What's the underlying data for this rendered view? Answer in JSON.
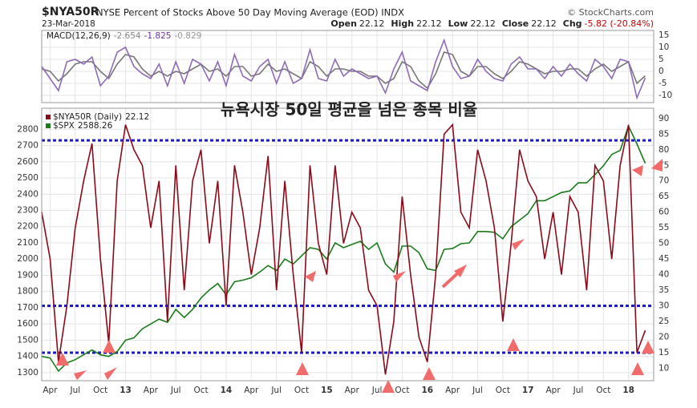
{
  "header": {
    "symbol": "$NYA50R",
    "description": "NYSE Percent of Stocks Above 50 Day Moving Average (EOD) INDX",
    "source": "© StockCharts.com",
    "date": "23-Mar-2018",
    "quote": [
      {
        "label": "Open",
        "value": "22.12"
      },
      {
        "label": "High",
        "value": "22.12"
      },
      {
        "label": "Low",
        "value": "22.12"
      },
      {
        "label": "Close",
        "value": "22.12"
      },
      {
        "label": "Chg",
        "value": "-5.82 (-20.84%)"
      }
    ]
  },
  "chart_data": [
    {
      "type": "line",
      "legend_label": "MACD(12,26,9)",
      "legend_values": [
        "-2.654",
        "-1.825",
        "-0.829"
      ],
      "x": [
        "2012-03",
        "2012-04",
        "2012-05",
        "2012-06",
        "2012-07",
        "2012-08",
        "2012-09",
        "2012-10",
        "2012-11",
        "2012-12",
        "2013-01",
        "2013-02",
        "2013-03",
        "2013-04",
        "2013-05",
        "2013-06",
        "2013-07",
        "2013-08",
        "2013-09",
        "2013-10",
        "2013-11",
        "2013-12",
        "2014-01",
        "2014-02",
        "2014-03",
        "2014-04",
        "2014-05",
        "2014-06",
        "2014-07",
        "2014-08",
        "2014-09",
        "2014-10",
        "2014-11",
        "2014-12",
        "2015-01",
        "2015-02",
        "2015-03",
        "2015-04",
        "2015-05",
        "2015-06",
        "2015-07",
        "2015-08",
        "2015-09",
        "2015-10",
        "2015-11",
        "2015-12",
        "2016-01",
        "2016-02",
        "2016-03",
        "2016-04",
        "2016-05",
        "2016-06",
        "2016-07",
        "2016-08",
        "2016-09",
        "2016-10",
        "2016-11",
        "2016-12",
        "2017-01",
        "2017-02",
        "2017-03",
        "2017-04",
        "2017-05",
        "2017-06",
        "2017-07",
        "2017-08",
        "2017-09",
        "2017-10",
        "2017-11",
        "2017-12",
        "2018-01",
        "2018-02",
        "2018-03"
      ],
      "xlim": [
        "2012-03",
        "2018-04"
      ],
      "ylim": [
        -13,
        17
      ],
      "yticks": [
        15,
        10,
        5,
        0,
        -5,
        -10
      ],
      "ytick_side": "right",
      "grid": true,
      "series": [
        {
          "color": "#8e6bb5",
          "values": [
            2,
            -3,
            -8,
            4,
            5,
            3,
            6,
            -6,
            -2,
            8,
            10,
            2,
            -1,
            -3,
            3,
            -6,
            4,
            -5,
            5,
            3,
            -4,
            4,
            -6,
            7,
            -2,
            -4,
            2,
            5,
            -5,
            4,
            -5,
            -3,
            9,
            -3,
            -4,
            5,
            -2,
            1,
            -1,
            -3,
            -2,
            -9,
            1,
            8,
            -4,
            -6,
            -8,
            4,
            13,
            2,
            -3,
            -2,
            5,
            0,
            -3,
            -4,
            3,
            6,
            1,
            1,
            -3,
            2,
            -2,
            3,
            -1,
            -4,
            5,
            2,
            -3,
            5,
            4,
            -11,
            -2.654
          ]
        },
        {
          "color": "#777777",
          "values": [
            1,
            0,
            -4,
            -1,
            3,
            4,
            4,
            0,
            -3,
            3,
            7,
            6,
            1,
            -2,
            0,
            -2,
            0,
            -1,
            1,
            3,
            0,
            1,
            -2,
            2,
            2,
            -2,
            -1,
            3,
            0,
            1,
            -1,
            -3,
            4,
            2,
            -2,
            1,
            1,
            0,
            0,
            -2,
            -2,
            -5,
            -3,
            4,
            2,
            -4,
            -7,
            -1,
            8,
            7,
            0,
            -2,
            2,
            2,
            -1,
            -3,
            0,
            4,
            3,
            1,
            -1,
            0,
            0,
            1,
            1,
            -2,
            1,
            3,
            0,
            2,
            4,
            -5,
            -1.825
          ]
        }
      ]
    },
    {
      "type": "line",
      "annotation": "뉴욕시장 50일 평균을 넘은 종목 비율",
      "x": [
        "2012-03",
        "2012-04",
        "2012-05",
        "2012-06",
        "2012-07",
        "2012-08",
        "2012-09",
        "2012-10",
        "2012-11",
        "2012-12",
        "2013-01",
        "2013-02",
        "2013-03",
        "2013-04",
        "2013-05",
        "2013-06",
        "2013-07",
        "2013-08",
        "2013-09",
        "2013-10",
        "2013-11",
        "2013-12",
        "2014-01",
        "2014-02",
        "2014-03",
        "2014-04",
        "2014-05",
        "2014-06",
        "2014-07",
        "2014-08",
        "2014-09",
        "2014-10",
        "2014-11",
        "2014-12",
        "2015-01",
        "2015-02",
        "2015-03",
        "2015-04",
        "2015-05",
        "2015-06",
        "2015-07",
        "2015-08",
        "2015-09",
        "2015-10",
        "2015-11",
        "2015-12",
        "2016-01",
        "2016-02",
        "2016-03",
        "2016-04",
        "2016-05",
        "2016-06",
        "2016-07",
        "2016-08",
        "2016-09",
        "2016-10",
        "2016-11",
        "2016-12",
        "2017-01",
        "2017-02",
        "2017-03",
        "2017-04",
        "2017-05",
        "2017-06",
        "2017-07",
        "2017-08",
        "2017-09",
        "2017-10",
        "2017-11",
        "2017-12",
        "2018-01",
        "2018-02",
        "2018-03"
      ],
      "xlim": [
        "2012-03",
        "2018-04"
      ],
      "xticks": [
        {
          "value": "2012-04",
          "label": "Apr"
        },
        {
          "value": "2012-07",
          "label": "Jul"
        },
        {
          "value": "2012-10",
          "label": "Oct"
        },
        {
          "value": "2013-01",
          "label": "13"
        },
        {
          "value": "2013-04",
          "label": "Apr"
        },
        {
          "value": "2013-07",
          "label": "Jul"
        },
        {
          "value": "2013-10",
          "label": "Oct"
        },
        {
          "value": "2014-01",
          "label": "14"
        },
        {
          "value": "2014-04",
          "label": "Apr"
        },
        {
          "value": "2014-07",
          "label": "Jul"
        },
        {
          "value": "2014-10",
          "label": "Oct"
        },
        {
          "value": "2015-01",
          "label": "15"
        },
        {
          "value": "2015-04",
          "label": "Apr"
        },
        {
          "value": "2015-07",
          "label": "Jul"
        },
        {
          "value": "2015-10",
          "label": "Oct"
        },
        {
          "value": "2016-01",
          "label": "16"
        },
        {
          "value": "2016-04",
          "label": "Apr"
        },
        {
          "value": "2016-07",
          "label": "Jul"
        },
        {
          "value": "2016-10",
          "label": "Oct"
        },
        {
          "value": "2017-01",
          "label": "17"
        },
        {
          "value": "2017-04",
          "label": "Apr"
        },
        {
          "value": "2017-07",
          "label": "Jul"
        },
        {
          "value": "2017-10",
          "label": "Oct"
        },
        {
          "value": "2018-01",
          "label": "18"
        }
      ],
      "ylim": [
        1250,
        2930
      ],
      "yticks": [
        1300,
        1400,
        1500,
        1600,
        1700,
        1800,
        1900,
        2000,
        2100,
        2200,
        2300,
        2400,
        2500,
        2600,
        2700,
        2800
      ],
      "y2lim": [
        6,
        93.3
      ],
      "y2ticks": [
        10,
        15,
        20,
        25,
        30,
        35,
        40,
        45,
        50,
        55,
        60,
        65,
        70,
        75,
        80,
        85,
        90
      ],
      "grid": true,
      "reference_lines": {
        "axis": "y2",
        "color": "#1a1acc",
        "values": [
          83,
          30,
          15
        ]
      },
      "series": [
        {
          "name": "$NYA50R (Daily)",
          "last_value": 22.12,
          "axis": "y2",
          "color": "#8b0a1a",
          "values": [
            60,
            45,
            12,
            30,
            55,
            70,
            82,
            45,
            18,
            70,
            88,
            80,
            75,
            55,
            70,
            25,
            75,
            35,
            70,
            80,
            50,
            70,
            30,
            75,
            60,
            40,
            55,
            78,
            35,
            70,
            40,
            15,
            75,
            50,
            40,
            75,
            50,
            60,
            55,
            35,
            30,
            8,
            25,
            65,
            40,
            20,
            12,
            40,
            85,
            88,
            60,
            55,
            80,
            70,
            55,
            25,
            50,
            80,
            70,
            65,
            45,
            60,
            40,
            65,
            60,
            35,
            75,
            70,
            45,
            75,
            88,
            15,
            22.12
          ]
        },
        {
          "name": "$SPX",
          "last_value": 2588.26,
          "axis": "y",
          "color": "#1a7a1a",
          "values": [
            1400,
            1390,
            1310,
            1360,
            1380,
            1410,
            1440,
            1410,
            1400,
            1430,
            1500,
            1515,
            1570,
            1600,
            1630,
            1610,
            1690,
            1640,
            1690,
            1760,
            1810,
            1850,
            1780,
            1860,
            1870,
            1885,
            1920,
            1960,
            1930,
            2000,
            1970,
            2020,
            2070,
            2060,
            2000,
            2100,
            2070,
            2090,
            2110,
            2060,
            2100,
            1970,
            1920,
            2080,
            2080,
            2040,
            1940,
            1930,
            2060,
            2065,
            2095,
            2100,
            2170,
            2170,
            2165,
            2125,
            2200,
            2240,
            2280,
            2360,
            2360,
            2385,
            2410,
            2420,
            2470,
            2470,
            2520,
            2575,
            2645,
            2670,
            2820,
            2710,
            2590
          ]
        }
      ]
    }
  ]
}
